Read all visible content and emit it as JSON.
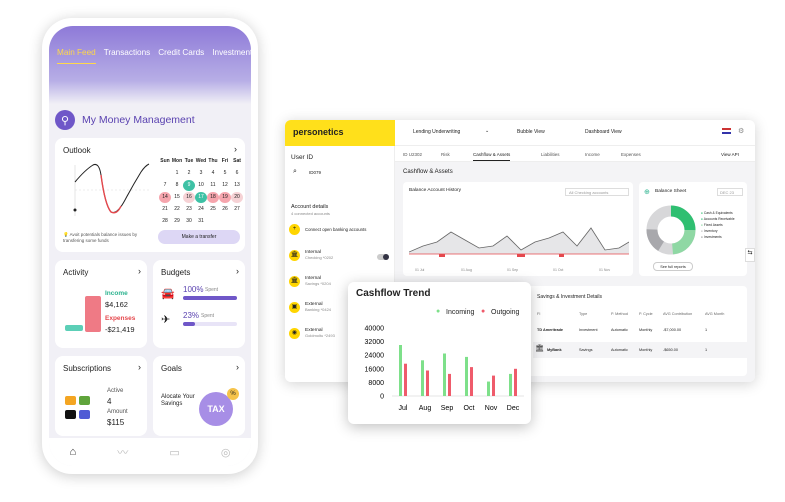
{
  "phone": {
    "tabs": [
      "Main Feed",
      "Transactions",
      "Credit Cards",
      "Investment"
    ],
    "title": "My Money Management",
    "outlook": {
      "title": "Outlook",
      "weekdays": [
        "Sun",
        "Mon",
        "Tue",
        "Wed",
        "Thu",
        "Fri",
        "Sat"
      ],
      "days": [
        "",
        "1",
        "2",
        "3",
        "4",
        "5",
        "6",
        "7",
        "8",
        "9",
        "10",
        "11",
        "12",
        "13",
        "14",
        "15",
        "16",
        "17",
        "18",
        "19",
        "20",
        "21",
        "22",
        "23",
        "24",
        "25",
        "26",
        "27",
        "28",
        "29",
        "30",
        "31"
      ],
      "tip": "Avoit potentials balance issues by transfering some funds",
      "transfer_label": "Make a transfer"
    },
    "activity": {
      "title": "Activity",
      "income_label": "Income",
      "income_value": "$4,162",
      "expenses_label": "Expenses",
      "expenses_value": "-$21,419"
    },
    "budgets": {
      "title": "Budgets",
      "items": [
        {
          "percent": "100%",
          "spent_label": "Spent",
          "fill": 1.0
        },
        {
          "percent": "23%",
          "spent_label": "Spent",
          "fill": 0.23
        }
      ]
    },
    "subscriptions": {
      "title": "Subscriptions",
      "active_label": "Active",
      "active_value": "4",
      "amount_label": "Amount",
      "amount_value": "$115"
    },
    "goals": {
      "title": "Goals",
      "text": "Alocate Your Savings",
      "badge": "TAX"
    }
  },
  "dashboard": {
    "logo": "personetics",
    "user_id_label": "User ID",
    "user_id_value": "ID079",
    "account_details_title": "Account details",
    "account_details_sub": "4 connected accounts",
    "connect_label": "Connect open banking accounts",
    "accounts": [
      {
        "name": "Internal",
        "sub": "Checking *0202"
      },
      {
        "name": "Internal",
        "sub": "Savings *0204"
      },
      {
        "name": "External",
        "sub": "Banking *0424"
      },
      {
        "name": "External",
        "sub": "Goldmoltu *2493"
      }
    ],
    "top_select": "Lending Underwriting",
    "bubble_view": "Bubble View",
    "dashboard_view": "Dashboard View",
    "tabs_id": "ID U2302",
    "tabs": [
      "Risk",
      "Cashflow & Assets",
      "Liabilities",
      "Income",
      "Expenses"
    ],
    "view_api": "View API",
    "section_title": "Cashflow & Assets",
    "history_title": "Balance Account History",
    "history_select": "All Checking accounts",
    "history_x": [
      "01 Jul",
      "01 Aug",
      "01 Sep",
      "01 Oct",
      "01 Nov"
    ],
    "balance_title": "Balance Sheet",
    "balance_select": "DEC 23",
    "legend": [
      "Cash & Equivalents",
      "Accounts Receivable",
      "Fixed Assets",
      "Inventory",
      "Investments"
    ],
    "see_full": "See full reports",
    "savings_title": "Savings & Investment Details",
    "table_headers": [
      "FI",
      "Type",
      "P. Method",
      "P. Cycle",
      "AVG Contribution",
      "AVG Month"
    ],
    "table_rows": [
      [
        "TD Ameritrade",
        "Investment",
        "Automatic",
        "Monthly",
        "-$7,000.00",
        "1"
      ],
      [
        "MyBank",
        "Savings",
        "Automatic",
        "Monthly",
        "-$650.00",
        "1"
      ]
    ]
  },
  "cashflow": {
    "title": "Cashflow Trend",
    "legend_incoming": "Incoming",
    "legend_outgoing": "Outgoing",
    "colors": {
      "incoming": "#7ee08a",
      "outgoing": "#ef5b6b"
    }
  },
  "chart_data": {
    "type": "bar",
    "title": "Cashflow Trend",
    "categories": [
      "Jul",
      "Aug",
      "Sep",
      "Oct",
      "Nov",
      "Dec"
    ],
    "series": [
      {
        "name": "Incoming",
        "values": [
          30000,
          21000,
          25000,
          23000,
          8500,
          13000
        ]
      },
      {
        "name": "Outgoing",
        "values": [
          19000,
          15000,
          13000,
          17000,
          12000,
          16000
        ]
      }
    ],
    "yticks": [
      "0",
      "4000",
      "8000",
      "12000",
      "16000",
      "20000",
      "24000",
      "28000",
      "32000",
      "36000",
      "40000"
    ],
    "ylim": [
      0,
      40000
    ]
  }
}
